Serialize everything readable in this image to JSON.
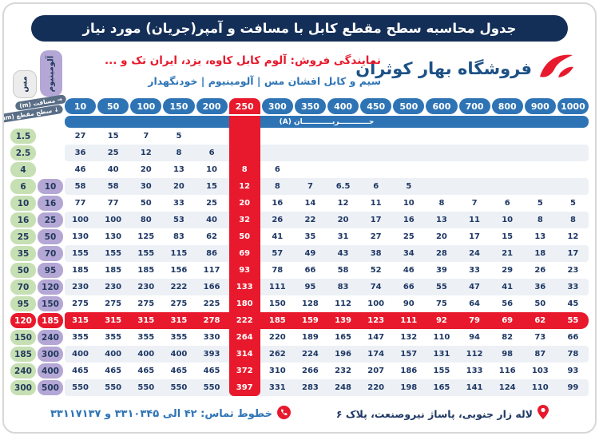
{
  "title": "جدول محاسبه سطح مقطع کابل با مسافت و آمپر(جریان) مورد نیاز",
  "header": {
    "dealer_line": "نمایندگی فروش: آلوم کابل کاوه، یزد، ایران تک و ...",
    "products_line": "سیم و کابل افشان مس | آلومینیوم | خودنگهدار",
    "store_name": "فروشگاه بهار کوثران"
  },
  "colors": {
    "accent_red": "#e8192c",
    "blue": "#2e74b5",
    "navy": "#142f57",
    "copper_green": "#c6e0b4",
    "aluminum_purple": "#b4a7d6"
  },
  "table": {
    "corner": {
      "distance_label": "→ مسافت (m)",
      "section_label": "↓ سطح مقطع (mm)"
    },
    "copper_column_label": "مس",
    "aluminum_column_label": "آلومینیوم",
    "current_band_label": "جــــــــــــریــــــــــــان (A)",
    "distances": [
      "10",
      "50",
      "100",
      "150",
      "200",
      "250",
      "300",
      "350",
      "400",
      "450",
      "500",
      "600",
      "700",
      "800",
      "900",
      "1000"
    ],
    "highlight_distance": "250",
    "highlight_distance_index": 5,
    "highlight_row_index": 11,
    "rows": [
      {
        "copper": "1.5",
        "aluminum": "",
        "values": [
          "27",
          "15",
          "7",
          "5",
          "",
          "",
          "",
          "",
          "",
          "",
          "",
          "",
          "",
          "",
          "",
          ""
        ]
      },
      {
        "copper": "2.5",
        "aluminum": "",
        "values": [
          "36",
          "25",
          "12",
          "8",
          "6",
          "",
          "",
          "",
          "",
          "",
          "",
          "",
          "",
          "",
          "",
          ""
        ]
      },
      {
        "copper": "4",
        "aluminum": "",
        "values": [
          "46",
          "40",
          "20",
          "13",
          "10",
          "8",
          "6",
          "",
          "",
          "",
          "",
          "",
          "",
          "",
          "",
          ""
        ]
      },
      {
        "copper": "6",
        "aluminum": "10",
        "values": [
          "58",
          "58",
          "30",
          "20",
          "15",
          "12",
          "8",
          "7",
          "6.5",
          "6",
          "5",
          "",
          "",
          "",
          "",
          ""
        ]
      },
      {
        "copper": "10",
        "aluminum": "16",
        "values": [
          "77",
          "77",
          "50",
          "33",
          "25",
          "20",
          "16",
          "14",
          "12",
          "11",
          "10",
          "8",
          "7",
          "6",
          "5",
          "5"
        ]
      },
      {
        "copper": "16",
        "aluminum": "25",
        "values": [
          "100",
          "100",
          "80",
          "53",
          "40",
          "32",
          "26",
          "22",
          "20",
          "17",
          "16",
          "13",
          "11",
          "10",
          "8",
          "8"
        ]
      },
      {
        "copper": "25",
        "aluminum": "50",
        "values": [
          "130",
          "130",
          "125",
          "83",
          "62",
          "50",
          "41",
          "35",
          "31",
          "27",
          "25",
          "20",
          "17",
          "15",
          "13",
          "12"
        ]
      },
      {
        "copper": "35",
        "aluminum": "70",
        "values": [
          "155",
          "155",
          "155",
          "115",
          "86",
          "69",
          "57",
          "49",
          "43",
          "38",
          "34",
          "28",
          "24",
          "21",
          "18",
          "17"
        ]
      },
      {
        "copper": "50",
        "aluminum": "95",
        "values": [
          "185",
          "185",
          "185",
          "156",
          "117",
          "93",
          "78",
          "66",
          "58",
          "52",
          "46",
          "39",
          "33",
          "29",
          "26",
          "23"
        ]
      },
      {
        "copper": "70",
        "aluminum": "120",
        "values": [
          "230",
          "230",
          "230",
          "222",
          "166",
          "133",
          "111",
          "95",
          "83",
          "74",
          "66",
          "55",
          "47",
          "41",
          "36",
          "33"
        ]
      },
      {
        "copper": "95",
        "aluminum": "150",
        "values": [
          "275",
          "275",
          "275",
          "275",
          "225",
          "180",
          "150",
          "128",
          "112",
          "100",
          "90",
          "75",
          "64",
          "56",
          "50",
          "45"
        ]
      },
      {
        "copper": "120",
        "aluminum": "185",
        "values": [
          "315",
          "315",
          "315",
          "315",
          "278",
          "222",
          "185",
          "159",
          "139",
          "123",
          "111",
          "92",
          "79",
          "69",
          "62",
          "55"
        ]
      },
      {
        "copper": "150",
        "aluminum": "240",
        "values": [
          "355",
          "355",
          "355",
          "355",
          "330",
          "264",
          "220",
          "189",
          "165",
          "147",
          "132",
          "110",
          "94",
          "82",
          "73",
          "66"
        ]
      },
      {
        "copper": "185",
        "aluminum": "300",
        "values": [
          "400",
          "400",
          "400",
          "400",
          "393",
          "314",
          "262",
          "224",
          "196",
          "174",
          "157",
          "131",
          "112",
          "98",
          "87",
          "78"
        ]
      },
      {
        "copper": "240",
        "aluminum": "400",
        "values": [
          "465",
          "465",
          "465",
          "465",
          "465",
          "372",
          "310",
          "266",
          "232",
          "207",
          "186",
          "155",
          "133",
          "116",
          "103",
          "93"
        ]
      },
      {
        "copper": "300",
        "aluminum": "500",
        "values": [
          "550",
          "550",
          "550",
          "550",
          "550",
          "397",
          "331",
          "283",
          "248",
          "220",
          "198",
          "165",
          "141",
          "124",
          "110",
          "99"
        ]
      }
    ]
  },
  "footer": {
    "phone_line": "خطوط تماس: ۴۲ الی ۳۳۱۰۳۴۵ و ۳۳۱۱۷۱۳۷",
    "address": "لاله زار جنوبی، پاساژ نیروصنعت، پلاک ۶"
  }
}
